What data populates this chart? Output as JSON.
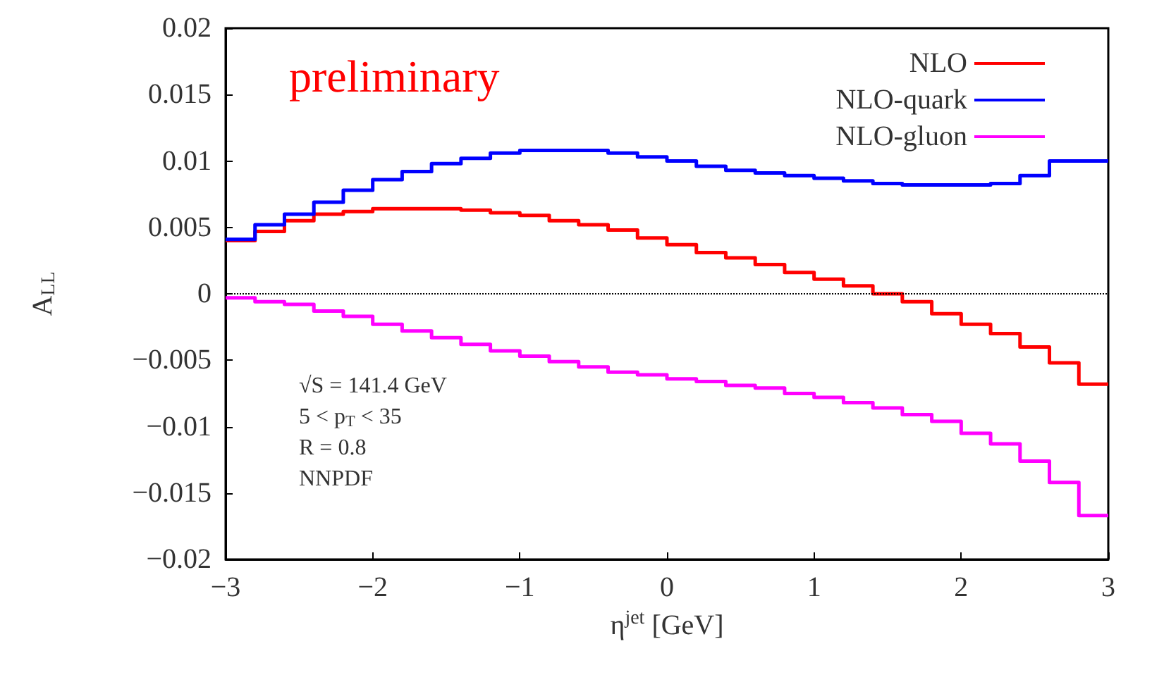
{
  "chart_data": {
    "type": "step",
    "xlabel": "η$^{jet}$ [GeV]",
    "ylabel": "A$_{LL}$",
    "x": [
      -3,
      -2.8,
      -2.6,
      -2.4,
      -2.2,
      -2,
      -1.8,
      -1.6,
      -1.4,
      -1.2,
      -1,
      -0.8,
      -0.6,
      -0.4,
      -0.2,
      0,
      0.2,
      0.4,
      0.6,
      0.8,
      1,
      1.2,
      1.4,
      1.6,
      1.8,
      2,
      2.2,
      2.4,
      2.6,
      2.8,
      3
    ],
    "series": [
      {
        "name": "NLO",
        "color": "#ff0000",
        "values": [
          0.004,
          0.0047,
          0.0055,
          0.006,
          0.0062,
          0.0064,
          0.0064,
          0.0064,
          0.0063,
          0.0061,
          0.0059,
          0.0055,
          0.0052,
          0.0048,
          0.0042,
          0.0037,
          0.0031,
          0.0027,
          0.0022,
          0.0016,
          0.0011,
          0.0006,
          0.0,
          -0.0006,
          -0.0015,
          -0.0023,
          -0.003,
          -0.004,
          -0.0052,
          -0.0068,
          -0.0068
        ]
      },
      {
        "name": "NLO-quark",
        "color": "#0000ff",
        "values": [
          0.0041,
          0.0052,
          0.006,
          0.0069,
          0.0078,
          0.0086,
          0.0092,
          0.0098,
          0.0102,
          0.0106,
          0.0108,
          0.0108,
          0.0108,
          0.0106,
          0.0103,
          0.01,
          0.0096,
          0.0093,
          0.0091,
          0.0089,
          0.0087,
          0.0085,
          0.0083,
          0.0082,
          0.0082,
          0.0082,
          0.0083,
          0.0089,
          0.01,
          0.01,
          0.01
        ]
      },
      {
        "name": "NLO-gluon",
        "color": "#ff00ff",
        "values": [
          -0.0003,
          -0.0006,
          -0.0008,
          -0.0013,
          -0.0017,
          -0.0023,
          -0.0028,
          -0.0033,
          -0.0038,
          -0.0043,
          -0.0047,
          -0.0051,
          -0.0055,
          -0.0059,
          -0.0061,
          -0.0064,
          -0.0066,
          -0.0069,
          -0.0071,
          -0.0075,
          -0.0078,
          -0.0082,
          -0.0086,
          -0.0091,
          -0.0096,
          -0.0105,
          -0.0113,
          -0.0126,
          -0.0142,
          -0.0167,
          -0.0167
        ]
      }
    ],
    "xlim": [
      -3,
      3
    ],
    "xticks": [
      -3,
      -2,
      -1,
      0,
      1,
      2,
      3
    ],
    "ylim": [
      -0.02,
      0.02
    ],
    "yticks": [
      -0.02,
      -0.015,
      -0.01,
      -0.005,
      0,
      0.005,
      0.01,
      0.015,
      0.02
    ],
    "ref_lines": [
      {
        "axis": "y",
        "value": 0,
        "color": "#000000",
        "line_style": "dotted"
      }
    ],
    "annotations": [
      "preliminary",
      "√S = 141.4 GeV",
      "5 < p$_{T}$ < 35",
      "R = 0.8",
      "NNPDF"
    ],
    "legend": "top right",
    "grid": false,
    "marker": "none",
    "line_style": "solid"
  }
}
